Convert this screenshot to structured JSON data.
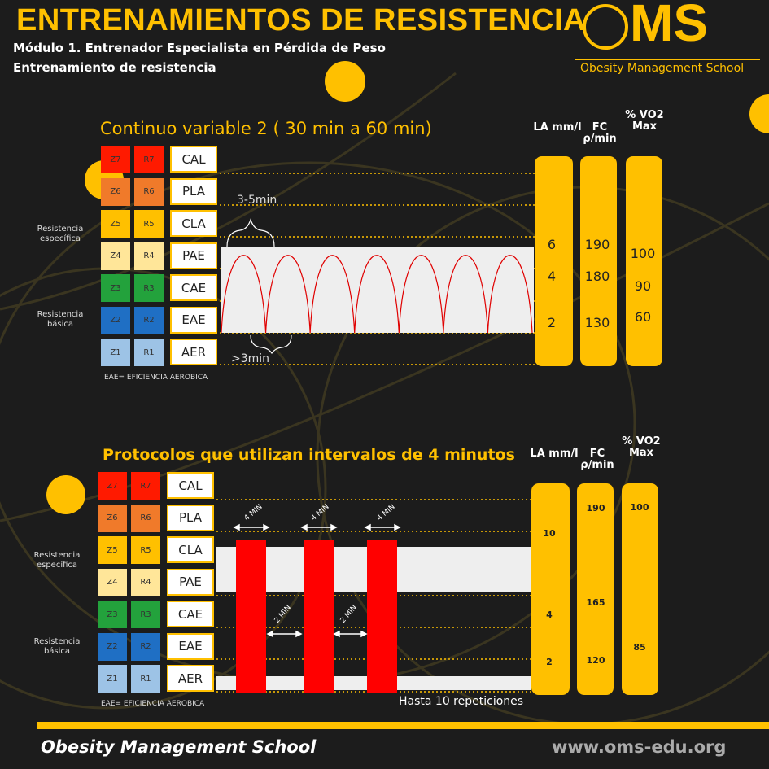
{
  "header": {
    "title": "ENTRENAMIENTOS DE RESISTENCIA",
    "subtitle1": "Módulo 1. Entrenador Especialista en Pérdida de Peso",
    "subtitle2": "Entrenamiento de resistencia"
  },
  "logo": {
    "letters": "MS",
    "name": "Obesity Management School"
  },
  "colors": {
    "accent": "#ffc000",
    "background": "#1c1c1c",
    "wave": "#e00000",
    "bar": "#ff0000"
  },
  "zones": [
    {
      "z": "Z7",
      "r": "R7",
      "label": "CAL",
      "color": "#ff1a00"
    },
    {
      "z": "Z6",
      "r": "R6",
      "label": "PLA",
      "color": "#f07a2a"
    },
    {
      "z": "Z5",
      "r": "R5",
      "label": "CLA",
      "color": "#ffc000"
    },
    {
      "z": "Z4",
      "r": "R4",
      "label": "PAE",
      "color": "#ffe699"
    },
    {
      "z": "Z3",
      "r": "R3",
      "label": "CAE",
      "color": "#23a23c"
    },
    {
      "z": "Z2",
      "r": "R2",
      "label": "EAE",
      "color": "#1f6fc4"
    },
    {
      "z": "Z1",
      "r": "R1",
      "label": "AER",
      "color": "#9dc3e6"
    }
  ],
  "side_labels": {
    "specific": "Resistencia específica",
    "basic": "Resistencia básica"
  },
  "footnote": "EAE= EFICIENCIA   AEROBICA",
  "columns_header": {
    "la": "LA mm/l",
    "fc": "FC ρ/min",
    "vo2": "% VO2 Max"
  },
  "section1": {
    "title": "Continuo variable 2 ( 30 min a 60 min)",
    "annotation_top": "3-5min",
    "annotation_bottom": ">3min",
    "la": [
      "6",
      "4",
      "2"
    ],
    "fc": [
      "190",
      "180",
      "130"
    ],
    "vo2": [
      "100",
      "90",
      "60"
    ]
  },
  "section2": {
    "title": "Protocolos que utilizan intervalos de 4 minutos",
    "work_label": "4 MIN",
    "rest_label": "2 MIN",
    "repetitions": "Hasta 10 repeticiones",
    "la": [
      "10",
      "4",
      "2"
    ],
    "fc": [
      "190",
      "165",
      "120"
    ],
    "vo2": [
      "100",
      "85"
    ]
  },
  "footer": {
    "left": "Obesity Management School",
    "right": "www.oms-edu.org"
  }
}
